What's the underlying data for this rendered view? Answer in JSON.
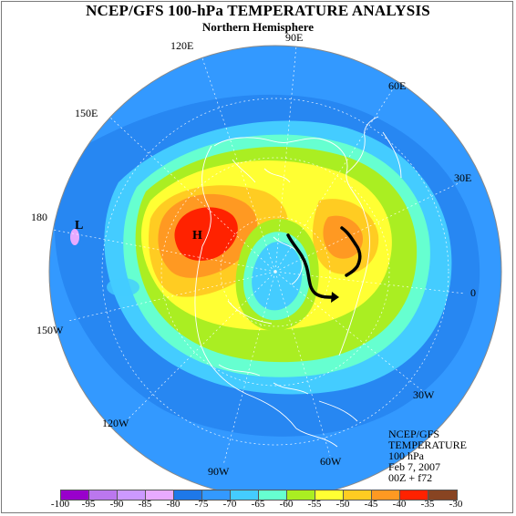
{
  "title": "NCEP/GFS 100-hPa TEMPERATURE ANALYSIS",
  "subtitle": "Northern Hemisphere",
  "longitude_labels": [
    "90E",
    "120E",
    "60E",
    "150E",
    "30E",
    "180",
    "0",
    "150W",
    "30W",
    "120W",
    "90W",
    "60W"
  ],
  "pressure_centers": {
    "high": "H",
    "low": "L"
  },
  "info": {
    "line1": "NCEP/GFS",
    "line2": "TEMPERATURE",
    "line3": "100 hPa",
    "line4": "Feb 7, 2007",
    "line5": "00Z + f72"
  },
  "colorbar": {
    "ticks": [
      "-100",
      "-95",
      "-90",
      "-85",
      "-80",
      "-75",
      "-70",
      "-65",
      "-60",
      "-55",
      "-50",
      "-45",
      "-40",
      "-35",
      "-30"
    ],
    "colors": [
      "#9900cc",
      "#bb77ee",
      "#cc99ff",
      "#e8aaff",
      "#1e78e8",
      "#3399ff",
      "#44ccff",
      "#66ffd0",
      "#aaee22",
      "#ffff33",
      "#ffcc22",
      "#ff9922",
      "#ff2200",
      "#884422",
      "#888888"
    ]
  },
  "colors": {
    "ocean_blue": "#3399ff",
    "cold_blue": "#1e78e8",
    "cyan": "#44ccff",
    "aqua": "#66ffd0",
    "lime": "#aaee22",
    "yellow": "#ffff33",
    "orange_light": "#ffcc22",
    "orange": "#ff9922",
    "red": "#ff2200",
    "pink": "#e8aaff"
  }
}
